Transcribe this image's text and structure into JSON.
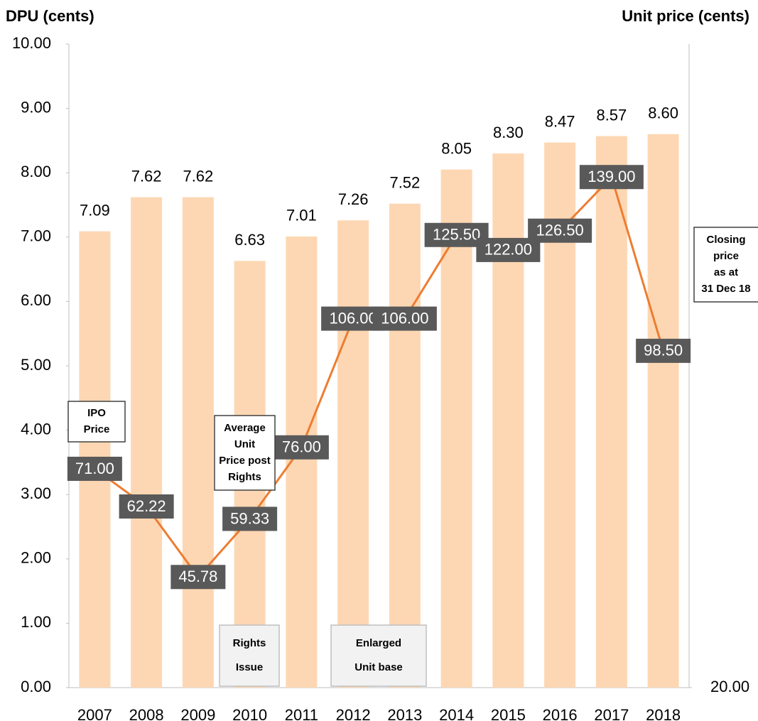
{
  "chart_data": {
    "type": "bar+line",
    "y_label": "DPU (cents)",
    "y2_label": "Unit price (cents)",
    "categories": [
      "2007",
      "2008",
      "2009",
      "2010",
      "2011",
      "2012",
      "2013",
      "2014",
      "2015",
      "2016",
      "2017",
      "2018"
    ],
    "series": [
      {
        "name": "DPU",
        "type": "bar",
        "color": "#fdd7b3",
        "values": [
          7.09,
          7.62,
          7.62,
          6.63,
          7.01,
          7.26,
          7.52,
          8.05,
          8.3,
          8.47,
          8.57,
          8.6
        ],
        "value_labels": [
          "7.09",
          "7.62",
          "7.62",
          "6.63",
          "7.01",
          "7.26",
          "7.52",
          "8.05",
          "8.30",
          "8.47",
          "8.57",
          "8.60"
        ]
      },
      {
        "name": "Unit price",
        "type": "line",
        "axis": "y2",
        "color": "#ed7d31",
        "values": [
          71.0,
          62.22,
          45.78,
          59.33,
          76.0,
          106.0,
          106.0,
          125.5,
          122.0,
          126.5,
          139.0,
          98.5
        ],
        "value_labels": [
          "71.00",
          "62.22",
          "45.78",
          "59.33",
          "76.00",
          "106.00",
          "106.00",
          "125.50",
          "122.00",
          "126.50",
          "139.00",
          "98.50"
        ]
      }
    ],
    "ylim": [
      0,
      10
    ],
    "yticks": [
      {
        "value": 0,
        "label": "0.00"
      },
      {
        "value": 1,
        "label": "1.00"
      },
      {
        "value": 2,
        "label": "2.00"
      },
      {
        "value": 3,
        "label": "3.00"
      },
      {
        "value": 4,
        "label": "4.00"
      },
      {
        "value": 5,
        "label": "5.00"
      },
      {
        "value": 6,
        "label": "6.00"
      },
      {
        "value": 7,
        "label": "7.00"
      },
      {
        "value": 8,
        "label": "8.00"
      },
      {
        "value": 9,
        "label": "9.00"
      },
      {
        "value": 10,
        "label": "10.00"
      }
    ],
    "y2lim": [
      20,
      170
    ],
    "y2ticks": [
      {
        "value": 20,
        "label": "20.00"
      }
    ],
    "annotations": [
      {
        "lines": [
          "IPO",
          "Price"
        ]
      },
      {
        "lines": [
          "Average",
          "Unit",
          "Price post",
          "Rights"
        ]
      },
      {
        "lines": [
          "Rights",
          "Issue"
        ]
      },
      {
        "lines": [
          "Enlarged",
          "Unit base"
        ]
      },
      {
        "lines": [
          "Closing",
          "price",
          "as at",
          "31 Dec 18"
        ]
      }
    ]
  }
}
